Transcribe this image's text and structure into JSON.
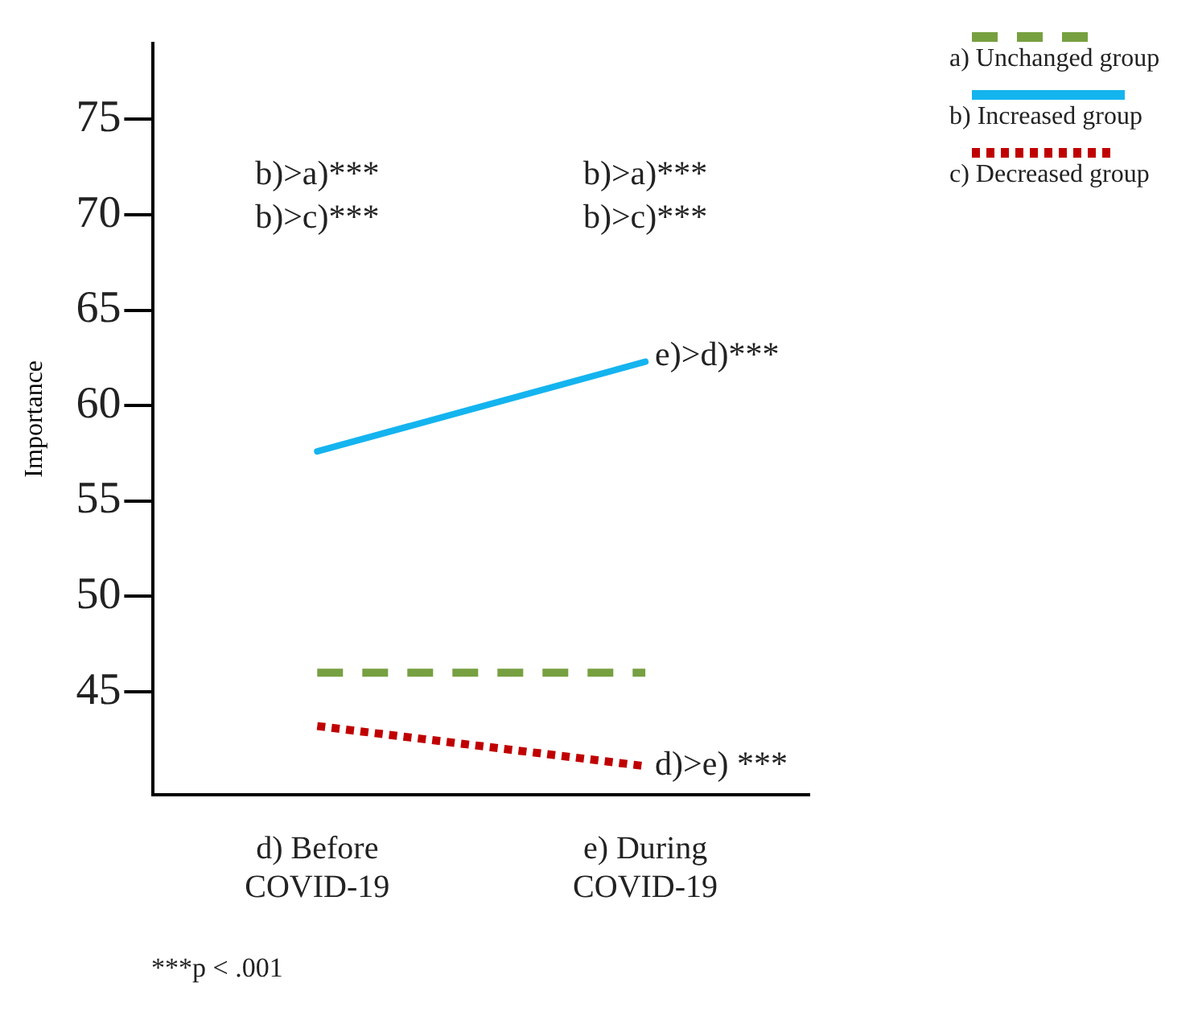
{
  "chart_data": {
    "type": "line",
    "ylabel": "Importance",
    "categories": [
      "d) Before COVID-19",
      "e) During COVID-19"
    ],
    "series": [
      {
        "name": "a) Unchanged group",
        "color": "#77a041",
        "values": [
          46.0,
          46.0
        ],
        "line_style": "dashed"
      },
      {
        "name": "b) Increased group",
        "color": "#14b4ef",
        "values": [
          57.6,
          62.3
        ],
        "line_style": "solid"
      },
      {
        "name": "c) Decreased group",
        "color": "#c00000",
        "values": [
          43.2,
          41.1
        ],
        "line_style": "dotted"
      }
    ],
    "ylim": [
      39.6,
      79
    ],
    "yticks": [
      45,
      50,
      55,
      60,
      65,
      70,
      75
    ],
    "legend": "top right",
    "marker": "none",
    "annotations": [
      "b)>a)***",
      "b)>c)***",
      "b)>a)***",
      "b)>c)***",
      {
        "text": "e)>d)***",
        "x": "e) During COVID-19",
        "y": 62.6
      },
      {
        "text": "d)>e) ***",
        "x": "e) During COVID-19",
        "y": 41.1
      },
      "***p < .001"
    ]
  }
}
